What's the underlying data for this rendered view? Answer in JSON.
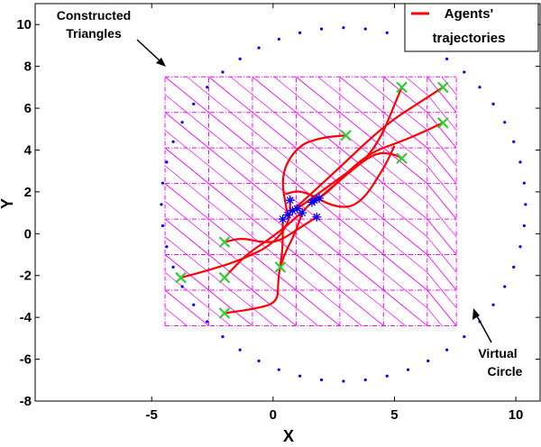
{
  "chart_data": {
    "type": "line",
    "xlabel": "X",
    "ylabel": "Y",
    "xlim": [
      -9.8,
      11
    ],
    "ylim": [
      -8,
      11
    ],
    "xticks": [
      -5,
      0,
      5,
      10
    ],
    "yticks": [
      -8,
      -6,
      -4,
      -2,
      0,
      2,
      4,
      6,
      8,
      10
    ],
    "grid": false,
    "legend": {
      "position": "top-right",
      "entries": [
        {
          "label_line1": "Agents'",
          "label_line2": "trajectories",
          "color": "#ff0000"
        }
      ]
    },
    "annotations": [
      {
        "line1": "Constructed",
        "line2": "Triangles"
      },
      {
        "line1": "Virtual",
        "line2": "Circle"
      }
    ],
    "virtual_circle": {
      "center": [
        2.9,
        1.4
      ],
      "rx": 7.5,
      "ry": 8.45,
      "points": 52,
      "color": "#0000ff"
    },
    "triangle_mesh": {
      "color": "#ff00ff",
      "x_lines": [
        -4.45,
        -2.65,
        -0.85,
        0.95,
        2.75,
        4.55,
        6.35,
        7.55
      ],
      "y_lines": [
        -4.4,
        -2.7,
        -1.0,
        0.7,
        2.4,
        4.1,
        5.8,
        7.5
      ],
      "x_range": [
        -4.45,
        7.55
      ],
      "y_range": [
        -4.4,
        7.5
      ]
    },
    "targets": {
      "marker": "x",
      "color": "#33cc33",
      "points": [
        [
          -3.8,
          -2.1
        ],
        [
          -2.0,
          -3.8
        ],
        [
          -2.0,
          -2.1
        ],
        [
          -2.0,
          -0.4
        ],
        [
          0.3,
          -1.6
        ],
        [
          3.0,
          4.7
        ],
        [
          5.3,
          3.6
        ],
        [
          5.3,
          7.0
        ],
        [
          7.0,
          7.0
        ],
        [
          7.0,
          5.3
        ]
      ]
    },
    "starts": {
      "marker": "*",
      "color": "#0000ff",
      "points": [
        [
          0.4,
          0.7
        ],
        [
          0.6,
          0.9
        ],
        [
          0.8,
          1.1
        ],
        [
          1.0,
          1.2
        ],
        [
          1.2,
          1.0
        ],
        [
          0.7,
          1.6
        ],
        [
          1.7,
          1.6
        ],
        [
          1.9,
          1.7
        ],
        [
          1.6,
          1.5
        ],
        [
          1.8,
          0.8
        ]
      ]
    },
    "series": [
      {
        "color": "#ff0000",
        "points": [
          [
            0.7,
            1.6
          ],
          [
            0.7,
            0.6
          ],
          [
            0.0,
            -0.5
          ],
          [
            -1.2,
            -1.2
          ],
          [
            -2.5,
            -1.7
          ],
          [
            -3.8,
            -2.1
          ]
        ]
      },
      {
        "color": "#ff0000",
        "points": [
          [
            1.8,
            0.8
          ],
          [
            1.0,
            0.2
          ],
          [
            0.2,
            -0.4
          ],
          [
            -0.5,
            -0.4
          ],
          [
            -1.3,
            -0.2
          ],
          [
            -2.0,
            -0.4
          ]
        ]
      },
      {
        "color": "#ff0000",
        "points": [
          [
            1.6,
            1.5
          ],
          [
            0.8,
            0.6
          ],
          [
            -0.2,
            -0.3
          ],
          [
            -1.0,
            -0.9
          ],
          [
            -1.6,
            -1.6
          ],
          [
            -2.0,
            -2.1
          ]
        ]
      },
      {
        "color": "#ff0000",
        "points": [
          [
            0.4,
            0.7
          ],
          [
            0.4,
            -0.8
          ],
          [
            0.2,
            -2.2
          ],
          [
            0.2,
            -3.3
          ],
          [
            -0.8,
            -3.6
          ],
          [
            -2.0,
            -3.8
          ]
        ]
      },
      {
        "color": "#ff0000",
        "points": [
          [
            1.2,
            1.0
          ],
          [
            0.9,
            0.0
          ],
          [
            0.5,
            -0.9
          ],
          [
            0.3,
            -1.6
          ]
        ]
      },
      {
        "color": "#ff0000",
        "points": [
          [
            0.6,
            0.9
          ],
          [
            0.3,
            2.8
          ],
          [
            1.0,
            4.2
          ],
          [
            2.0,
            4.6
          ],
          [
            3.0,
            4.7
          ]
        ]
      },
      {
        "color": "#ff0000",
        "points": [
          [
            1.9,
            1.7
          ],
          [
            3.0,
            2.8
          ],
          [
            4.2,
            3.9
          ],
          [
            5.0,
            3.8
          ],
          [
            5.3,
            3.6
          ]
        ]
      },
      {
        "color": "#ff0000",
        "points": [
          [
            1.0,
            1.2
          ],
          [
            2.8,
            2.7
          ],
          [
            4.2,
            3.9
          ],
          [
            5.3,
            7.0
          ]
        ]
      },
      {
        "color": "#ff0000",
        "points": [
          [
            0.8,
            1.1
          ],
          [
            2.5,
            2.9
          ],
          [
            4.6,
            5.2
          ],
          [
            6.2,
            6.4
          ],
          [
            7.0,
            7.0
          ]
        ]
      },
      {
        "color": "#ff0000",
        "points": [
          [
            1.7,
            1.6
          ],
          [
            2.2,
            1.9
          ],
          [
            3.8,
            3.8
          ],
          [
            5.5,
            4.5
          ],
          [
            7.0,
            5.3
          ]
        ]
      },
      {
        "color": "#ff0000",
        "points": [
          [
            0.5,
            1.9
          ],
          [
            1.2,
            2.1
          ],
          [
            2.6,
            1.2
          ],
          [
            3.6,
            1.4
          ],
          [
            4.6,
            3.2
          ],
          [
            5.0,
            4.2
          ]
        ]
      }
    ]
  }
}
